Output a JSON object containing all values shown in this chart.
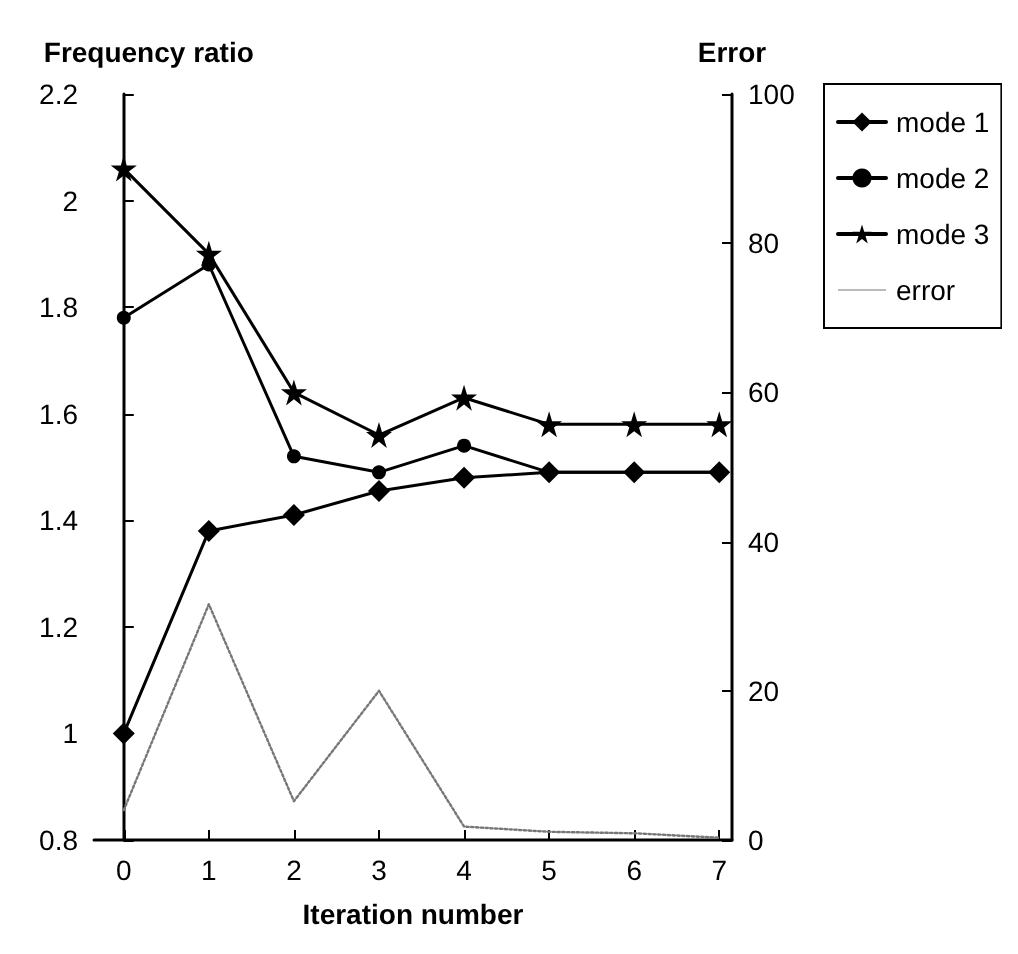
{
  "chart_data": {
    "type": "line",
    "xlabel": "Iteration number",
    "ylabel": "Frequency ratio",
    "y2label": "Error",
    "x": [
      0,
      1,
      2,
      3,
      4,
      5,
      6,
      7
    ],
    "xlim": [
      -0.35,
      7.15
    ],
    "xticks": [
      0,
      1,
      2,
      3,
      4,
      5,
      6,
      7
    ],
    "ylim": [
      0.8,
      2.2
    ],
    "yticks": [
      0.8,
      1,
      1.2,
      1.4,
      1.6,
      1.8,
      2,
      2.2
    ],
    "y2lim": [
      0,
      100
    ],
    "y2ticks": [
      0,
      20,
      40,
      60,
      80,
      100
    ],
    "grid": false,
    "legend": "top right",
    "line_style": "solid",
    "series": [
      {
        "name": "mode 1",
        "color": "#000000",
        "marker": "diamond",
        "values": [
          1.0,
          1.38,
          1.41,
          1.455,
          1.48,
          1.49,
          1.49,
          1.49
        ]
      },
      {
        "name": "mode 2",
        "color": "#000000",
        "marker": "circle",
        "values": [
          1.78,
          1.88,
          1.52,
          1.49,
          1.54,
          1.49,
          1.49,
          1.49
        ]
      },
      {
        "name": "mode 3",
        "color": "#000000",
        "marker": "star",
        "values": [
          2.06,
          1.9,
          1.64,
          1.56,
          1.63,
          1.58,
          1.58,
          1.58
        ]
      },
      {
        "name": "error",
        "color": "#777777",
        "marker": "none",
        "line_style": "dotted",
        "axis": "y2",
        "values": [
          4,
          31.6,
          5.2,
          20,
          1.8,
          1.1,
          0.9,
          0.3
        ]
      }
    ]
  }
}
